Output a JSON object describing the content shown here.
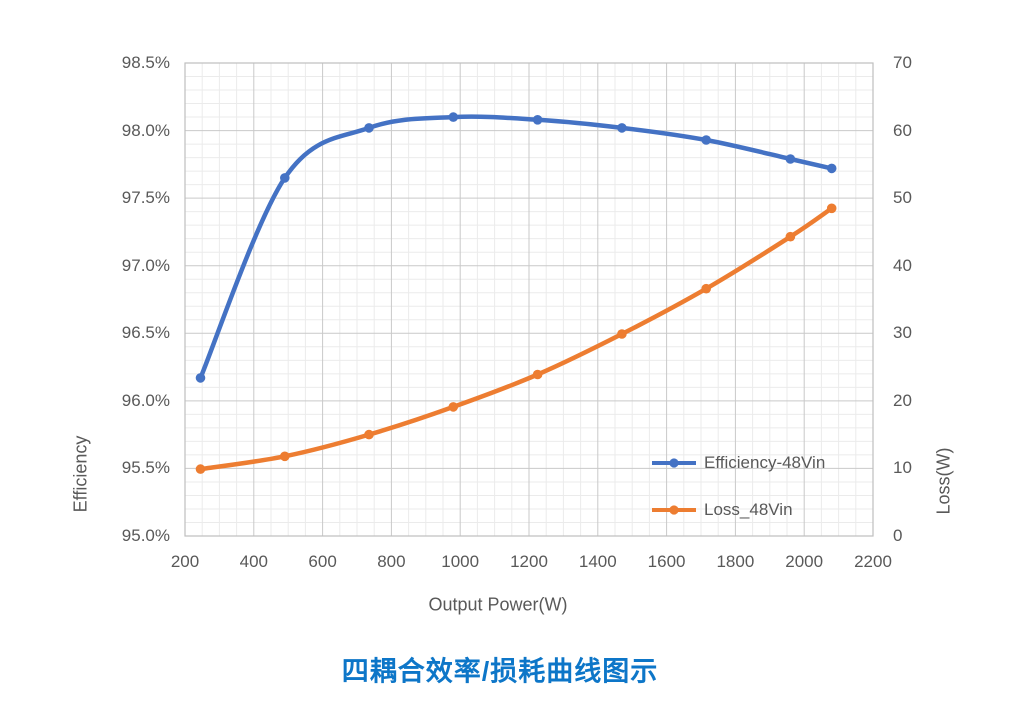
{
  "title": {
    "text": "四耦合效率/损耗曲线图示",
    "color": "#0d76c8"
  },
  "chart_data": {
    "type": "line",
    "x_label": "Output Power(W)",
    "y_left_label": "Efficiency",
    "y_right_label": "Loss(W)",
    "x_range": [
      200,
      2200
    ],
    "y_left_range": [
      95.0,
      98.5
    ],
    "y_right_range": [
      0,
      70
    ],
    "x_ticks": [
      200,
      400,
      600,
      800,
      1000,
      1200,
      1400,
      1600,
      1800,
      2000,
      2200
    ],
    "y_left_ticks": [
      "95.0%",
      "95.5%",
      "96.0%",
      "96.5%",
      "97.0%",
      "97.5%",
      "98.0%",
      "98.5%"
    ],
    "y_right_ticks": [
      0,
      10,
      20,
      30,
      40,
      50,
      60,
      70
    ],
    "grid": {
      "shown": true,
      "x_minor_step": 50,
      "x_major_step": 200,
      "y_left_minor_step": 0.1,
      "y_left_major_step": 0.5,
      "minor_color": "#ebebeb",
      "major_color": "#c9c9c9",
      "border_color": "#bfbfbf"
    },
    "legend_position": "inside-right",
    "x": [
      245,
      490,
      735,
      980,
      1225,
      1470,
      1715,
      1960,
      2080
    ],
    "series": [
      {
        "name": "Efficiency-48Vin",
        "axis": "left",
        "color": "#4472c4",
        "values": [
          96.17,
          97.65,
          98.02,
          98.1,
          98.08,
          98.02,
          97.93,
          97.79,
          97.72
        ]
      },
      {
        "name": "Loss_48Vin",
        "axis": "right",
        "color": "#ed7d31",
        "values": [
          9.9,
          11.8,
          15.0,
          19.1,
          23.9,
          29.9,
          36.6,
          44.3,
          48.5
        ]
      }
    ]
  }
}
